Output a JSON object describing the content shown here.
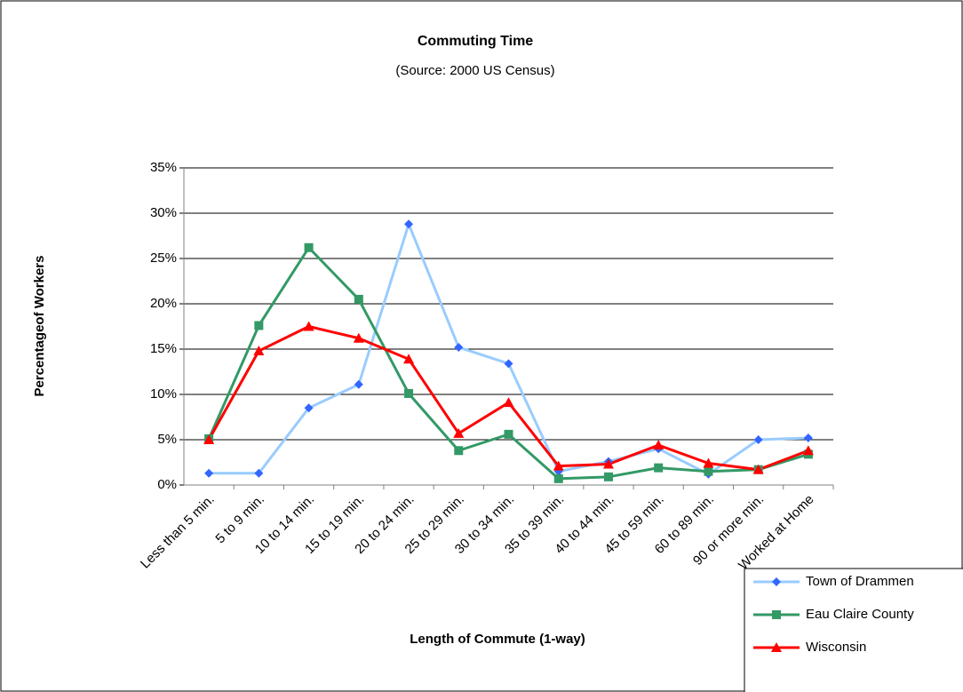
{
  "chart_data": {
    "type": "line",
    "title": "Commuting Time",
    "subtitle": "(Source: 2000 US Census)",
    "x_label": "Length of Commute (1-way)",
    "y_label": "Percentageof Workers",
    "categories": [
      "Less than 5 min.",
      "5 to 9 min.",
      "10 to 14 min.",
      "15 to 19 min.",
      "20 to 24 min.",
      "25 to 29 min.",
      "30 to 34 min.",
      "35 to 39 min.",
      "40 to 44 min.",
      "45 to 59 min.",
      "60 to 89 min.",
      "90 or more min.",
      "Worked at Home"
    ],
    "series": [
      {
        "name": "Town of Drammen",
        "color": "#99ccff",
        "marker_color": "#3366ff",
        "marker": "diamond",
        "values": [
          1.3,
          1.3,
          8.5,
          11.1,
          28.8,
          15.2,
          13.4,
          1.5,
          2.6,
          4.0,
          1.2,
          5.0,
          5.2
        ]
      },
      {
        "name": "Eau Claire County",
        "color": "#339966",
        "marker_color": "#339966",
        "marker": "square",
        "values": [
          5.1,
          17.6,
          26.2,
          20.5,
          10.1,
          3.8,
          5.6,
          0.7,
          0.9,
          1.9,
          1.5,
          1.7,
          3.4
        ]
      },
      {
        "name": "Wisconsin",
        "color": "#ff0000",
        "marker_color": "#ff0000",
        "marker": "triangle",
        "values": [
          5.0,
          14.8,
          17.5,
          16.2,
          13.9,
          5.7,
          9.1,
          2.1,
          2.3,
          4.4,
          2.4,
          1.7,
          3.8
        ]
      }
    ],
    "ylim": [
      0,
      35
    ],
    "yticks": [
      {
        "value": 0,
        "label": "0%"
      },
      {
        "value": 5,
        "label": "5%"
      },
      {
        "value": 10,
        "label": "10%"
      },
      {
        "value": 15,
        "label": "15%"
      },
      {
        "value": 20,
        "label": "20%"
      },
      {
        "value": 25,
        "label": "25%"
      },
      {
        "value": 30,
        "label": "30%"
      },
      {
        "value": 35,
        "label": "35%"
      }
    ],
    "grid": true,
    "legend": "bottom-right"
  }
}
